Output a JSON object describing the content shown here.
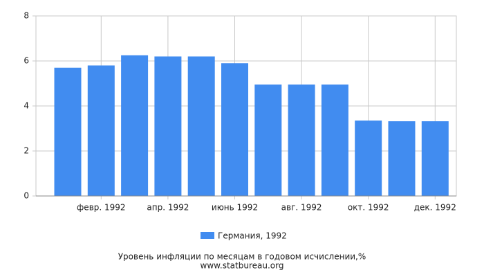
{
  "chart_data": {
    "type": "bar",
    "title": "Уровень инфляции по месяцам в годовом исчислении,%",
    "source": "www.statbureau.org",
    "categories": [
      null,
      "февр. 1992",
      null,
      "апр. 1992",
      null,
      "июнь 1992",
      null,
      "авг. 1992",
      null,
      "окт. 1992",
      null,
      "дек. 1992"
    ],
    "series": [
      {
        "name": "Германия, 1992",
        "color": "#418cf0",
        "values": [
          5.7,
          5.8,
          6.25,
          6.2,
          6.2,
          5.9,
          4.95,
          4.95,
          4.95,
          3.35,
          3.32,
          3.32
        ]
      }
    ],
    "ylim": [
      0,
      8
    ],
    "yticks": [
      0,
      2,
      4,
      6,
      8
    ],
    "grid": true
  }
}
